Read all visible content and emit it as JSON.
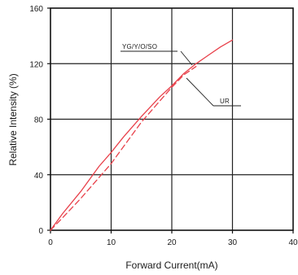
{
  "chart_data": {
    "type": "line",
    "title": "",
    "xlabel": "Forward Current(mA)",
    "ylabel": "Relative Intensity (%)",
    "xlim": [
      0,
      40
    ],
    "ylim": [
      0,
      160
    ],
    "x_ticks": [
      "0",
      "10",
      "20",
      "30",
      "40"
    ],
    "y_ticks": [
      "0",
      "40",
      "80",
      "120",
      "160"
    ],
    "grid": true,
    "series_color": "#e8404a",
    "series": [
      {
        "name": "YG/Y/O/SO",
        "style": "solid",
        "points": [
          [
            0,
            0
          ],
          [
            2,
            12
          ],
          [
            5,
            28
          ],
          [
            8,
            46
          ],
          [
            10,
            56
          ],
          [
            12,
            67
          ],
          [
            15,
            82
          ],
          [
            18,
            96
          ],
          [
            20,
            104
          ],
          [
            22,
            113
          ],
          [
            24,
            120
          ],
          [
            26,
            126
          ],
          [
            28,
            132
          ],
          [
            30,
            137
          ]
        ]
      },
      {
        "name": "UR",
        "style": "dashed",
        "points": [
          [
            0,
            0
          ],
          [
            2,
            9
          ],
          [
            5,
            23
          ],
          [
            8,
            38
          ],
          [
            10,
            48
          ],
          [
            12,
            60
          ],
          [
            15,
            78
          ],
          [
            18,
            93
          ],
          [
            20,
            103
          ],
          [
            22,
            112
          ],
          [
            24,
            118
          ]
        ]
      }
    ],
    "annotations": [
      {
        "text": "YG/Y/O/SO",
        "series_index": 0
      },
      {
        "text": "UR",
        "series_index": 1
      }
    ]
  }
}
